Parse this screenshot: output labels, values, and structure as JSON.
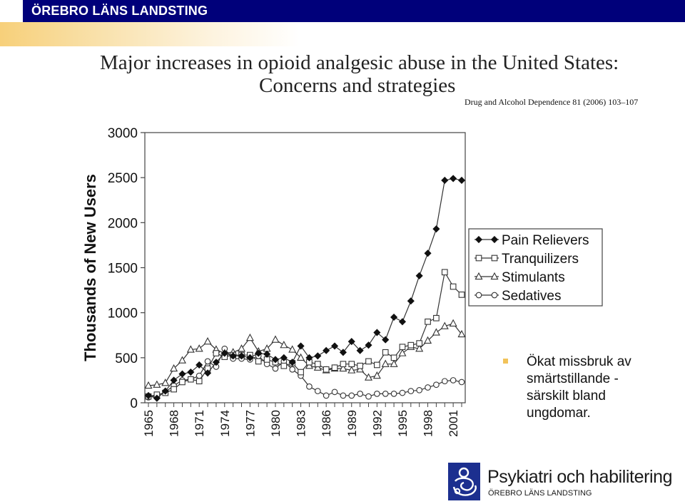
{
  "header": {
    "organization": "ÖREBRO LÄNS LANDSTING"
  },
  "slide": {
    "title_line1": "Major increases in opioid analgesic abuse in the United States:",
    "title_line2": "Concerns and strategies",
    "citation": "Drug and Alcohol Dependence 81 (2006) 103–107"
  },
  "chart_data": {
    "type": "line",
    "title": "",
    "xlabel": "",
    "ylabel": "Thousands of New Users",
    "ylim": [
      0,
      3000
    ],
    "yticks": [
      0,
      500,
      1000,
      1500,
      2000,
      2500,
      3000
    ],
    "xlim": [
      1965,
      2002
    ],
    "xticks": [
      1965,
      1968,
      1971,
      1974,
      1977,
      1980,
      1983,
      1986,
      1989,
      1992,
      1995,
      1998,
      2001
    ],
    "grid": false,
    "legend_position": "right",
    "x": [
      1965,
      1966,
      1967,
      1968,
      1969,
      1970,
      1971,
      1972,
      1973,
      1974,
      1975,
      1976,
      1977,
      1978,
      1979,
      1980,
      1981,
      1982,
      1983,
      1984,
      1985,
      1986,
      1987,
      1988,
      1989,
      1990,
      1991,
      1992,
      1993,
      1994,
      1995,
      1996,
      1997,
      1998,
      1999,
      2000,
      2001,
      2002
    ],
    "series": [
      {
        "name": "Pain Relievers",
        "marker": "filled-diamond",
        "values": [
          80,
          50,
          130,
          250,
          320,
          340,
          420,
          330,
          450,
          550,
          520,
          520,
          500,
          550,
          540,
          480,
          500,
          450,
          630,
          500,
          520,
          580,
          630,
          560,
          680,
          580,
          640,
          780,
          700,
          950,
          900,
          1130,
          1410,
          1660,
          1930,
          2470,
          2490,
          2470
        ]
      },
      {
        "name": "Tranquilizers",
        "marker": "open-square",
        "values": [
          70,
          90,
          110,
          150,
          230,
          260,
          240,
          380,
          550,
          510,
          530,
          530,
          530,
          460,
          480,
          450,
          410,
          440,
          340,
          450,
          430,
          370,
          390,
          430,
          430,
          410,
          460,
          420,
          560,
          500,
          620,
          640,
          660,
          900,
          940,
          1450,
          1290,
          1200
        ]
      },
      {
        "name": "Stimulants",
        "marker": "open-triangle",
        "values": [
          190,
          200,
          220,
          380,
          470,
          590,
          600,
          680,
          590,
          550,
          560,
          600,
          720,
          570,
          600,
          700,
          640,
          590,
          500,
          410,
          390,
          360,
          380,
          380,
          360,
          370,
          280,
          300,
          430,
          430,
          550,
          620,
          600,
          690,
          780,
          850,
          880,
          760
        ]
      },
      {
        "name": "Sedatives",
        "marker": "open-circle",
        "values": [
          60,
          80,
          120,
          190,
          250,
          260,
          300,
          460,
          400,
          600,
          490,
          490,
          480,
          520,
          430,
          380,
          460,
          370,
          300,
          180,
          130,
          80,
          120,
          80,
          80,
          100,
          70,
          100,
          100,
          100,
          110,
          130,
          140,
          170,
          200,
          240,
          250,
          230
        ]
      }
    ]
  },
  "bullet": {
    "text": "Ökat missbruk av smärtstillande - särskilt bland ungdomar.",
    "color": "#f2c35a"
  },
  "logo": {
    "name": "Psykiatri och habilitering",
    "sub": "ÖREBRO LÄNS LANDSTING",
    "color": "#1c2f8f"
  },
  "theme": {
    "header_bg": "#00007a",
    "accent_orange": "#f7d07a"
  }
}
